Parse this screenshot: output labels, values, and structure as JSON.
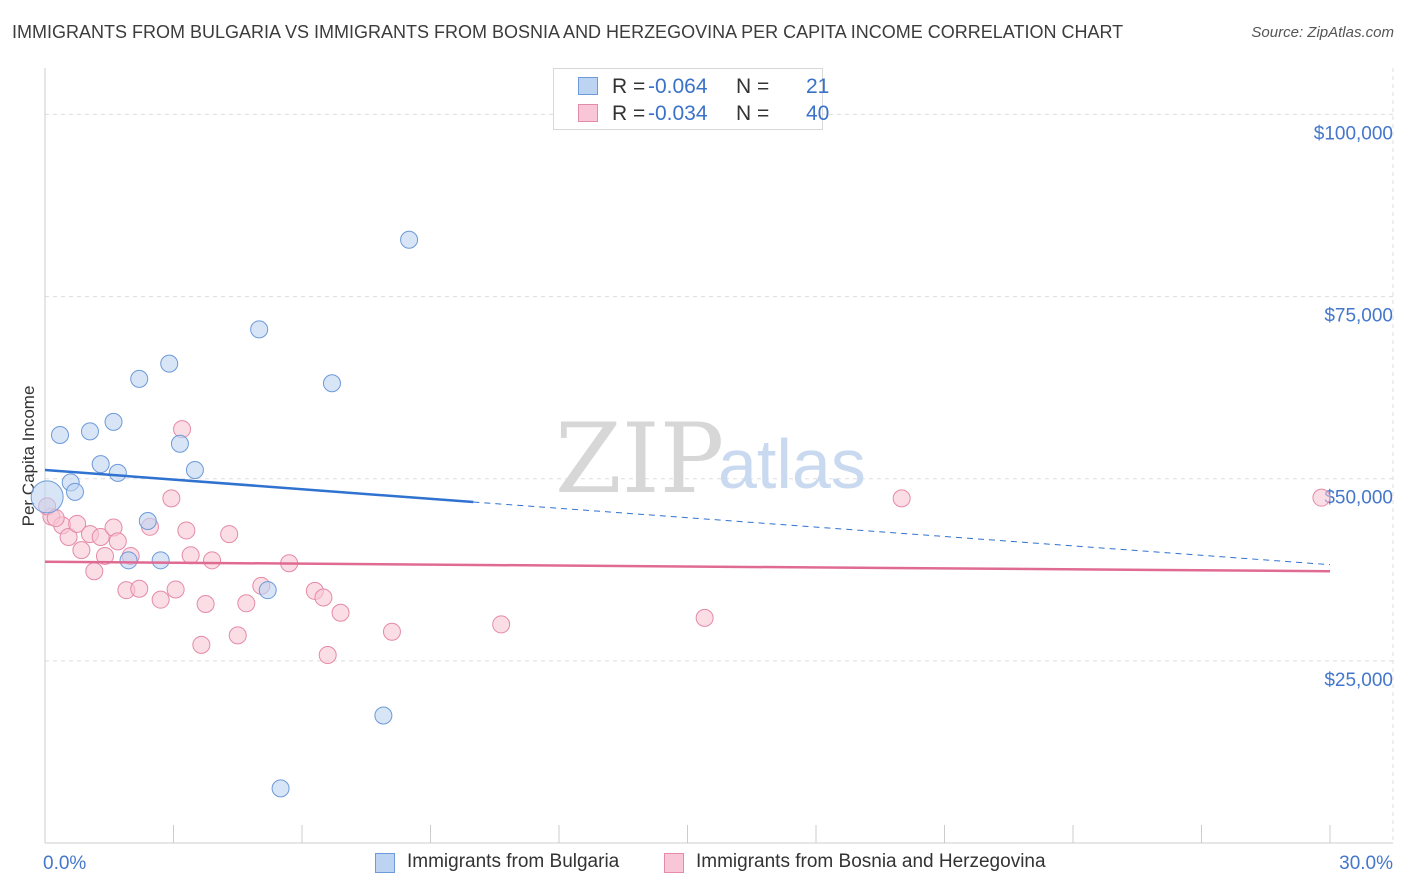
{
  "header": {
    "title": "IMMIGRANTS FROM BULGARIA VS IMMIGRANTS FROM BOSNIA AND HERZEGOVINA PER CAPITA INCOME CORRELATION CHART",
    "source_prefix": "Source: ",
    "source_name": "ZipAtlas.com"
  },
  "watermark": {
    "zip": "ZIP",
    "atlas": "atlas"
  },
  "legend": {
    "rows": [
      {
        "r_label": "R =",
        "r_value": "-0.064",
        "n_label": "N =",
        "n_value": "21"
      },
      {
        "r_label": "R =",
        "r_value": "-0.034",
        "n_label": "N =",
        "n_value": "40"
      }
    ]
  },
  "colors": {
    "series1_fill": "#bcd4f2",
    "series1_stroke": "#6d9ad8",
    "series1_line": "#2f72d0",
    "series2_fill": "#f8c6d6",
    "series2_stroke": "#e58aa8",
    "series2_line": "#e06b92",
    "grid": "#dddddd",
    "tick_text": "#4477cc"
  },
  "chart_data": {
    "type": "scatter",
    "title": "IMMIGRANTS FROM BULGARIA VS IMMIGRANTS FROM BOSNIA AND HERZEGOVINA PER CAPITA INCOME CORRELATION CHART",
    "xlabel": "",
    "ylabel": "Per Capita Income",
    "xlim": [
      0,
      30
    ],
    "ylim": [
      0,
      105000
    ],
    "x_tick_labels": [
      "0.0%",
      "30.0%"
    ],
    "y_ticks": [
      25000,
      50000,
      75000,
      100000
    ],
    "y_tick_labels": [
      "$25,000",
      "$50,000",
      "$75,000",
      "$100,000"
    ],
    "series": [
      {
        "name": "Immigrants from Bulgaria",
        "points": [
          {
            "x": 0.05,
            "y": 47500
          },
          {
            "x": 0.35,
            "y": 56000
          },
          {
            "x": 0.6,
            "y": 49500
          },
          {
            "x": 0.7,
            "y": 48200
          },
          {
            "x": 1.05,
            "y": 56500
          },
          {
            "x": 1.3,
            "y": 52000
          },
          {
            "x": 1.6,
            "y": 57800
          },
          {
            "x": 1.7,
            "y": 50800
          },
          {
            "x": 1.95,
            "y": 38800
          },
          {
            "x": 2.2,
            "y": 63700
          },
          {
            "x": 2.4,
            "y": 44200
          },
          {
            "x": 2.7,
            "y": 38800
          },
          {
            "x": 2.9,
            "y": 65800
          },
          {
            "x": 3.15,
            "y": 54800
          },
          {
            "x": 3.5,
            "y": 51200
          },
          {
            "x": 5.0,
            "y": 70500
          },
          {
            "x": 5.2,
            "y": 34700
          },
          {
            "x": 5.5,
            "y": 7500
          },
          {
            "x": 6.7,
            "y": 63100
          },
          {
            "x": 7.9,
            "y": 17500
          },
          {
            "x": 8.5,
            "y": 82800
          }
        ],
        "trend": {
          "x0": 0,
          "y0": 51200,
          "x1": 10,
          "y1": 46800,
          "x1_dashed": 30,
          "y1_dashed": 38200
        }
      },
      {
        "name": "Immigrants from Bosnia and Herzegovina",
        "points": [
          {
            "x": 0.15,
            "y": 44800
          },
          {
            "x": 0.4,
            "y": 43600
          },
          {
            "x": 0.55,
            "y": 42000
          },
          {
            "x": 0.75,
            "y": 43800
          },
          {
            "x": 0.85,
            "y": 40200
          },
          {
            "x": 1.05,
            "y": 42400
          },
          {
            "x": 1.15,
            "y": 37300
          },
          {
            "x": 1.3,
            "y": 42000
          },
          {
            "x": 1.4,
            "y": 39400
          },
          {
            "x": 1.6,
            "y": 43300
          },
          {
            "x": 1.7,
            "y": 41400
          },
          {
            "x": 1.9,
            "y": 34700
          },
          {
            "x": 2.0,
            "y": 39400
          },
          {
            "x": 2.2,
            "y": 34900
          },
          {
            "x": 2.45,
            "y": 43400
          },
          {
            "x": 2.7,
            "y": 33400
          },
          {
            "x": 2.95,
            "y": 47300
          },
          {
            "x": 3.05,
            "y": 34800
          },
          {
            "x": 3.2,
            "y": 56800
          },
          {
            "x": 3.3,
            "y": 42900
          },
          {
            "x": 3.4,
            "y": 39500
          },
          {
            "x": 3.65,
            "y": 27200
          },
          {
            "x": 3.75,
            "y": 32800
          },
          {
            "x": 3.9,
            "y": 38800
          },
          {
            "x": 4.3,
            "y": 42400
          },
          {
            "x": 4.5,
            "y": 28500
          },
          {
            "x": 4.7,
            "y": 32900
          },
          {
            "x": 5.05,
            "y": 35300
          },
          {
            "x": 5.7,
            "y": 38400
          },
          {
            "x": 6.3,
            "y": 34600
          },
          {
            "x": 6.5,
            "y": 33700
          },
          {
            "x": 6.6,
            "y": 25800
          },
          {
            "x": 6.9,
            "y": 31600
          },
          {
            "x": 8.1,
            "y": 29000
          },
          {
            "x": 10.65,
            "y": 30000
          },
          {
            "x": 15.4,
            "y": 30900
          },
          {
            "x": 20.0,
            "y": 47300
          },
          {
            "x": 29.8,
            "y": 47400
          },
          {
            "x": 0.05,
            "y": 46200
          },
          {
            "x": 0.25,
            "y": 44600
          }
        ],
        "trend": {
          "x0": 0,
          "y0": 38600,
          "x1": 30,
          "y1": 37300
        }
      }
    ]
  }
}
